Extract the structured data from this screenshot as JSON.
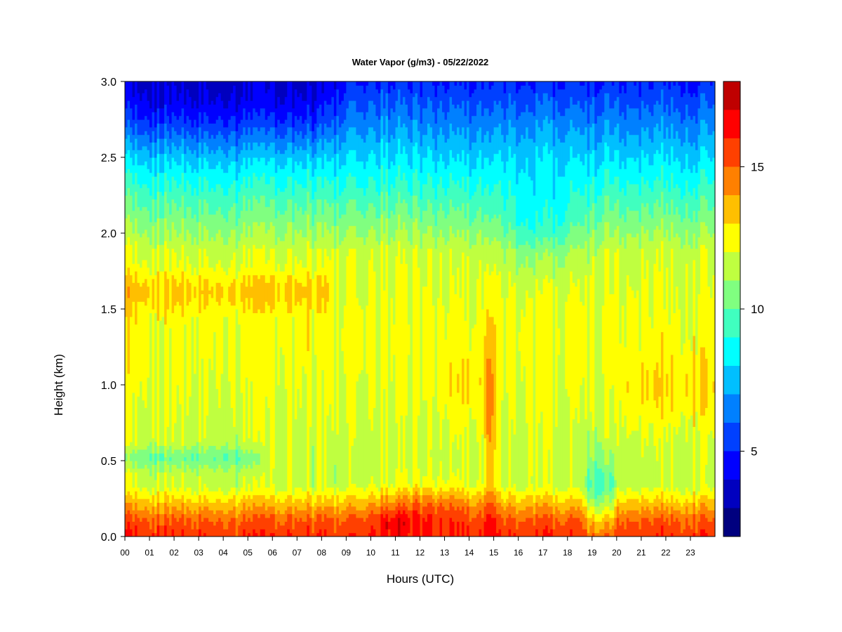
{
  "chart_data": {
    "type": "heatmap",
    "title": "Water Vapor (g/m3) - 05/22/2022",
    "xlabel": "Hours (UTC)",
    "ylabel": "Height (km)",
    "x_range": [
      0,
      24
    ],
    "y_range": [
      0,
      3.0
    ],
    "x_ticks": [
      "00",
      "01",
      "02",
      "03",
      "04",
      "05",
      "06",
      "07",
      "08",
      "09",
      "10",
      "11",
      "12",
      "13",
      "14",
      "15",
      "16",
      "17",
      "18",
      "19",
      "20",
      "21",
      "22",
      "23"
    ],
    "y_ticks": [
      "0.0",
      "0.5",
      "1.0",
      "1.5",
      "2.0",
      "2.5",
      "3.0"
    ],
    "colorbar": {
      "range": [
        2,
        18
      ],
      "levels": [
        2,
        3,
        4,
        5,
        6,
        7,
        8,
        9,
        10,
        11,
        12,
        13,
        14,
        15,
        16,
        17,
        18
      ],
      "ticks": [
        {
          "value": 5,
          "label": "5"
        },
        {
          "value": 10,
          "label": "10"
        },
        {
          "value": 15,
          "label": "15"
        }
      ],
      "colors": [
        "#00007f",
        "#0000bf",
        "#0000ff",
        "#0040ff",
        "#0080ff",
        "#00bfff",
        "#00ffff",
        "#40ffbf",
        "#80ff80",
        "#bfff40",
        "#ffff00",
        "#ffbf00",
        "#ff8000",
        "#ff4000",
        "#ff0000",
        "#bf0000",
        "#7f0000"
      ]
    },
    "grid": false,
    "legend": "colorbar-right"
  }
}
